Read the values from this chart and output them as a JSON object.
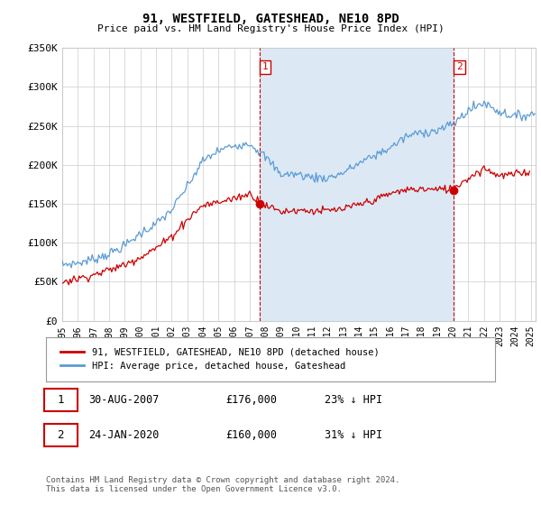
{
  "title": "91, WESTFIELD, GATESHEAD, NE10 8PD",
  "subtitle": "Price paid vs. HM Land Registry's House Price Index (HPI)",
  "ylim": [
    0,
    350000
  ],
  "yticks": [
    0,
    50000,
    100000,
    150000,
    200000,
    250000,
    300000,
    350000
  ],
  "ytick_labels": [
    "£0",
    "£50K",
    "£100K",
    "£150K",
    "£200K",
    "£250K",
    "£300K",
    "£350K"
  ],
  "hpi_color": "#5b9bd5",
  "hpi_fill_color": "#dce9f5",
  "price_color": "#cc0000",
  "vline_color": "#cc0000",
  "bg_color": "#ffffff",
  "grid_color": "#cccccc",
  "legend_items": [
    {
      "label": "91, WESTFIELD, GATESHEAD, NE10 8PD (detached house)",
      "color": "#cc0000"
    },
    {
      "label": "HPI: Average price, detached house, Gateshead",
      "color": "#5b9bd5"
    }
  ],
  "transactions": [
    {
      "num": 1,
      "date": "30-AUG-2007",
      "price": 176000,
      "note": "23% ↓ HPI",
      "year": 2007.66
    },
    {
      "num": 2,
      "date": "24-JAN-2020",
      "price": 160000,
      "note": "31% ↓ HPI",
      "year": 2020.07
    }
  ],
  "footer": "Contains HM Land Registry data © Crown copyright and database right 2024.\nThis data is licensed under the Open Government Licence v3.0.",
  "xlim_left": 1995.0,
  "xlim_right": 2025.3
}
